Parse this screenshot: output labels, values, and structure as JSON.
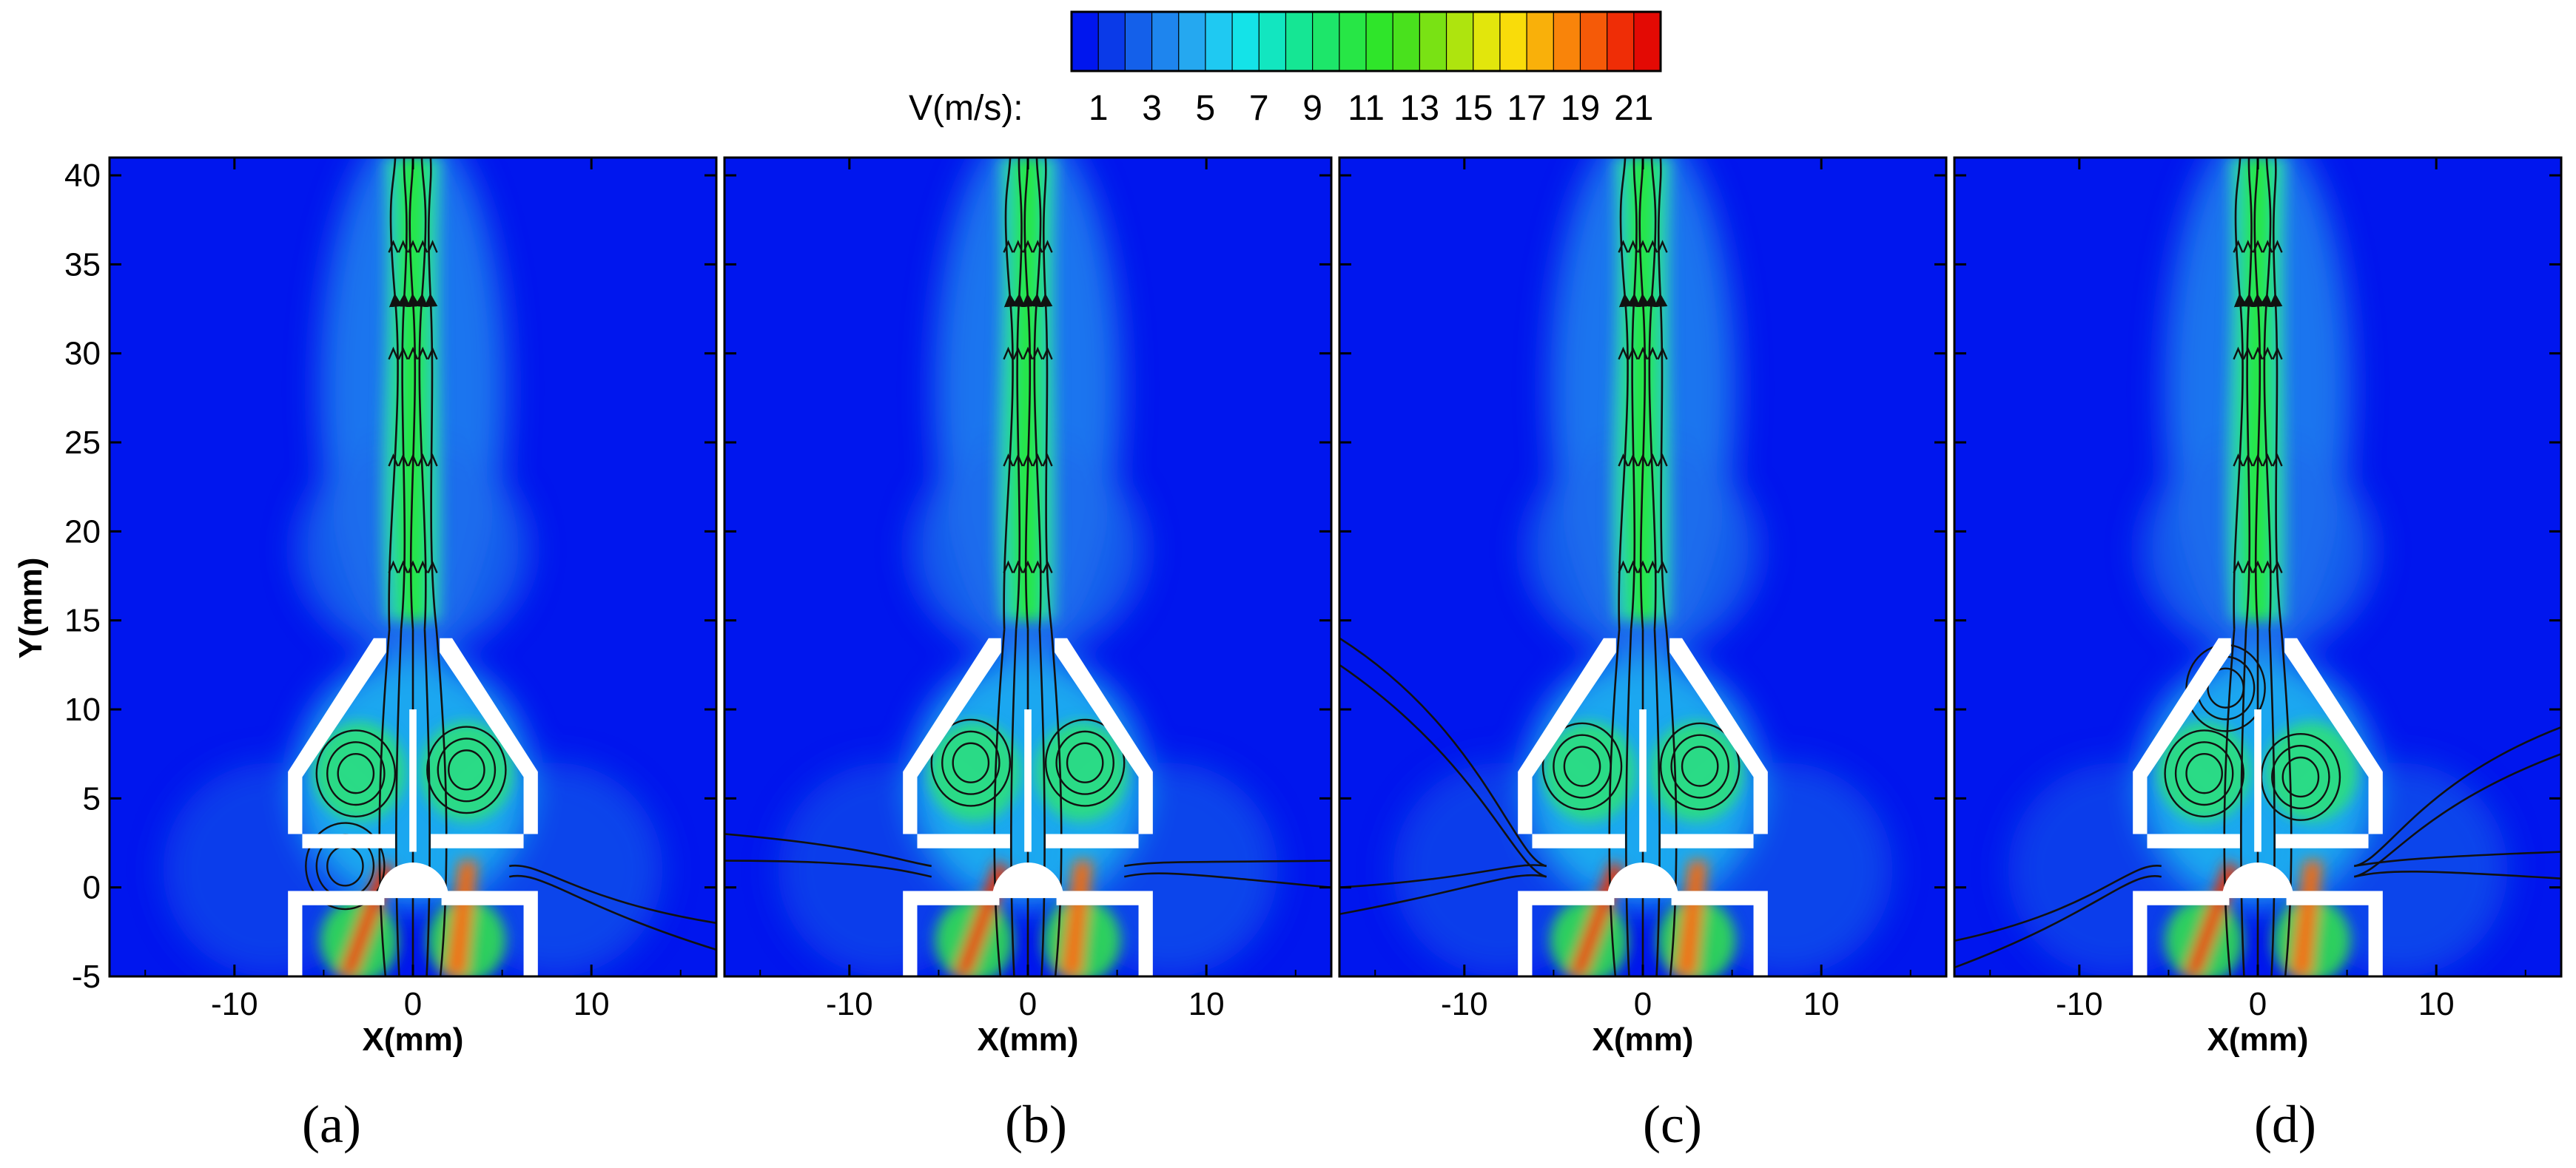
{
  "colorbar": {
    "label": "V(m/s):",
    "tick_labels": [
      "1",
      "3",
      "5",
      "7",
      "9",
      "11",
      "13",
      "15",
      "17",
      "19",
      "21"
    ],
    "tick_values": [
      1,
      3,
      5,
      7,
      9,
      11,
      13,
      15,
      17,
      19,
      21
    ],
    "range": [
      0,
      22
    ],
    "colors": [
      "#0016ee",
      "#0a3ae8",
      "#1460ea",
      "#1e85ee",
      "#25a8f0",
      "#1fc9f2",
      "#14e3e8",
      "#12e6c0",
      "#15e694",
      "#1de66a",
      "#27e646",
      "#2fe52a",
      "#49e11d",
      "#79e214",
      "#aee40e",
      "#e2e60c",
      "#f9dc0a",
      "#f9b00a",
      "#f9840a",
      "#f55a08",
      "#ef2d06",
      "#e30a04"
    ]
  },
  "colors": {
    "background_field": "#0016ee",
    "jet_core": "#27e646",
    "streamline": "#111111",
    "solid_wall": "#ffffff"
  },
  "chart_data": [
    {
      "type": "heatmap",
      "panel": "(a)",
      "xlabel": "X(mm)",
      "ylabel": "Y(mm)",
      "xlim": [
        -17,
        17
      ],
      "ylim": [
        -5,
        41
      ],
      "xticks": [
        -10,
        0,
        10
      ],
      "yticks": [
        -5,
        0,
        5,
        10,
        15,
        20,
        25,
        30,
        35,
        40
      ],
      "xtick_labels": [
        "-10",
        "0",
        "10"
      ],
      "ytick_labels": [
        "-5",
        "0",
        "5",
        "10",
        "15",
        "20",
        "25",
        "30",
        "35",
        "40"
      ],
      "vortices": [
        {
          "x": -3.2,
          "y": 6.4
        },
        {
          "x": 3.0,
          "y": 6.6
        },
        {
          "x": -3.8,
          "y": 1.2
        }
      ],
      "inlet_streams": [
        {
          "side": "right",
          "y": -2
        }
      ]
    },
    {
      "type": "heatmap",
      "panel": "(b)",
      "xlabel": "X(mm)",
      "ylabel": "",
      "xlim": [
        -17,
        17
      ],
      "ylim": [
        -5,
        41
      ],
      "xticks": [
        -10,
        0,
        10
      ],
      "yticks": [
        -5,
        0,
        5,
        10,
        15,
        20,
        25,
        30,
        35,
        40
      ],
      "xtick_labels": [
        "-10",
        "0",
        "10"
      ],
      "vortices": [
        {
          "x": -3.2,
          "y": 7.0
        },
        {
          "x": 3.2,
          "y": 7.0
        }
      ],
      "inlet_streams": [
        {
          "side": "left",
          "y": 3
        },
        {
          "side": "right",
          "y": 1.5
        }
      ]
    },
    {
      "type": "heatmap",
      "panel": "(c)",
      "xlabel": "X(mm)",
      "ylabel": "",
      "xlim": [
        -17,
        17
      ],
      "ylim": [
        -5,
        41
      ],
      "xticks": [
        -10,
        0,
        10
      ],
      "yticks": [
        -5,
        0,
        5,
        10,
        15,
        20,
        25,
        30,
        35,
        40
      ],
      "xtick_labels": [
        "-10",
        "0",
        "10"
      ],
      "vortices": [
        {
          "x": -3.4,
          "y": 6.8
        },
        {
          "x": 3.2,
          "y": 6.8
        }
      ],
      "inlet_streams": [
        {
          "side": "left",
          "y": 14
        },
        {
          "side": "left",
          "y": 0
        }
      ]
    },
    {
      "type": "heatmap",
      "panel": "(d)",
      "xlabel": "X(mm)",
      "ylabel": "",
      "xlim": [
        -17,
        17
      ],
      "ylim": [
        -5,
        41
      ],
      "xticks": [
        -10,
        0,
        10
      ],
      "yticks": [
        -5,
        0,
        5,
        10,
        15,
        20,
        25,
        30,
        35,
        40
      ],
      "xtick_labels": [
        "-10",
        "0",
        "10"
      ],
      "vortices": [
        {
          "x": -3.0,
          "y": 6.4
        },
        {
          "x": -1.8,
          "y": 11.2
        },
        {
          "x": 2.4,
          "y": 6.2
        }
      ],
      "inlet_streams": [
        {
          "side": "right",
          "y": 9
        },
        {
          "side": "left",
          "y": -3
        },
        {
          "side": "right",
          "y": 2
        }
      ]
    }
  ]
}
